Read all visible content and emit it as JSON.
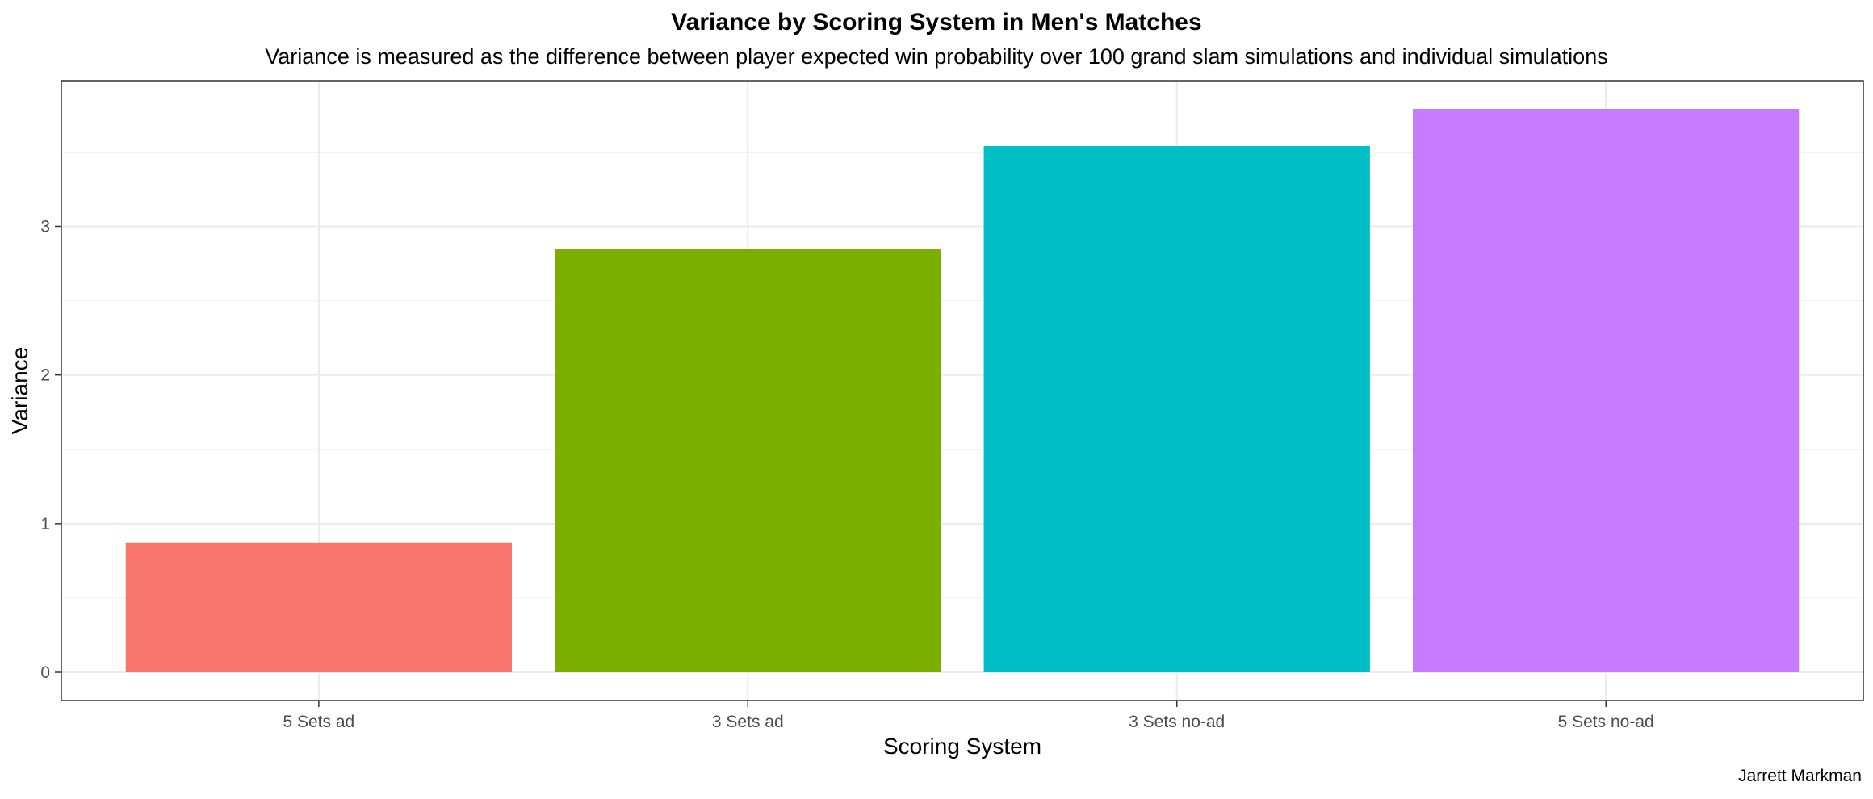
{
  "chart_data": {
    "type": "bar",
    "title": "Variance by Scoring System in Men's Matches",
    "subtitle": "Variance is measured as the difference between player expected win probability over 100 grand slam simulations and individual simulations",
    "xlabel": "Scoring System",
    "ylabel": "Variance",
    "caption": "Jarrett Markman",
    "categories": [
      "5 Sets ad",
      "3 Sets ad",
      "3 Sets no-ad",
      "5 Sets no-ad"
    ],
    "values": [
      0.87,
      2.85,
      3.54,
      3.79
    ],
    "colors": [
      "#F8766D",
      "#7CAE00",
      "#00BFC4",
      "#C77CFF"
    ],
    "ylim": [
      -0.19,
      3.98
    ],
    "yticks": [
      0,
      1,
      2,
      3
    ],
    "grid": true,
    "legend": "none"
  }
}
